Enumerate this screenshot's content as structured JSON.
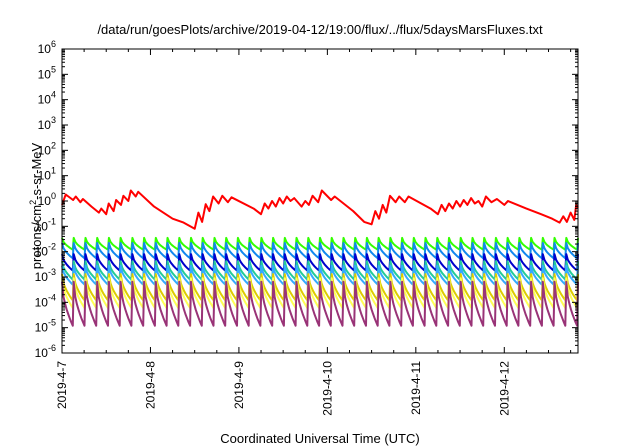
{
  "chart_data": {
    "type": "line",
    "title": "/data/run/goesPlots/archive/2019-04-12/19:00/flux/../flux/5daysMarsFluxes.txt",
    "xlabel": "Coordinated Universal Time (UTC)",
    "ylabel_main": "protons/cm",
    "ylabel_sup": "2",
    "ylabel_tail": "-s-sr-MeV",
    "yscale": "log",
    "ylim": [
      1e-06,
      1000000.0
    ],
    "y_ticks": [
      {
        "value": 1e-06,
        "base": "10",
        "exp": "-6"
      },
      {
        "value": 1e-05,
        "base": "10",
        "exp": "-5"
      },
      {
        "value": 0.0001,
        "base": "10",
        "exp": "-4"
      },
      {
        "value": 0.001,
        "base": "10",
        "exp": "-3"
      },
      {
        "value": 0.01,
        "base": "10",
        "exp": "-2"
      },
      {
        "value": 0.1,
        "base": "10",
        "exp": "-1"
      },
      {
        "value": 1,
        "base": "10",
        "exp": "0"
      },
      {
        "value": 10,
        "base": "10",
        "exp": "1"
      },
      {
        "value": 100,
        "base": "10",
        "exp": "2"
      },
      {
        "value": 1000,
        "base": "10",
        "exp": "3"
      },
      {
        "value": 10000,
        "base": "10",
        "exp": "4"
      },
      {
        "value": 100000,
        "base": "10",
        "exp": "5"
      },
      {
        "value": 1000000,
        "base": "10",
        "exp": "6"
      }
    ],
    "xlim": [
      "2019-04-07T00:00",
      "2019-04-12T20:00"
    ],
    "x_ticks": [
      "2019-4-7",
      "2019-4-8",
      "2019-4-9",
      "2019-4-10",
      "2019-4-11",
      "2019-4-12"
    ],
    "x_tick_dates": [
      "2019-04-07T00:00",
      "2019-04-08T00:00",
      "2019-04-09T00:00",
      "2019-04-10T00:00",
      "2019-04-11T00:00",
      "2019-04-12T00:00"
    ],
    "grid": false,
    "legend": "none",
    "series": [
      {
        "color": "#ff0000",
        "points": [
          [
            "2019-04-07T00:00",
            0.7
          ],
          [
            "2019-04-07T01:00",
            1.8
          ],
          [
            "2019-04-07T03:00",
            1.1
          ],
          [
            "2019-04-07T03:45",
            1.5
          ],
          [
            "2019-04-07T05:00",
            0.9
          ],
          [
            "2019-04-07T05:40",
            1.2
          ],
          [
            "2019-04-07T08:00",
            0.6
          ],
          [
            "2019-04-07T10:00",
            0.35
          ],
          [
            "2019-04-07T10:40",
            0.5
          ],
          [
            "2019-04-07T12:00",
            0.3
          ],
          [
            "2019-04-07T12:40",
            0.8
          ],
          [
            "2019-04-07T14:00",
            0.4
          ],
          [
            "2019-04-07T14:40",
            1.1
          ],
          [
            "2019-04-07T16:00",
            0.7
          ],
          [
            "2019-04-07T16:40",
            1.6
          ],
          [
            "2019-04-07T18:00",
            1.0
          ],
          [
            "2019-04-07T18:40",
            2.6
          ],
          [
            "2019-04-07T20:00",
            1.5
          ],
          [
            "2019-04-07T20:40",
            2.3
          ],
          [
            "2019-04-08T01:00",
            0.6
          ],
          [
            "2019-04-08T06:00",
            0.2
          ],
          [
            "2019-04-08T09:00",
            0.14
          ],
          [
            "2019-04-08T12:00",
            0.08
          ],
          [
            "2019-04-08T13:00",
            0.35
          ],
          [
            "2019-04-08T14:00",
            0.15
          ],
          [
            "2019-04-08T15:00",
            0.75
          ],
          [
            "2019-04-08T16:00",
            0.4
          ],
          [
            "2019-04-08T17:00",
            1.5
          ],
          [
            "2019-04-08T18:30",
            0.8
          ],
          [
            "2019-04-08T19:30",
            1.6
          ],
          [
            "2019-04-08T21:00",
            0.9
          ],
          [
            "2019-04-08T22:00",
            1.4
          ],
          [
            "2019-04-09T04:00",
            0.5
          ],
          [
            "2019-04-09T06:00",
            0.3
          ],
          [
            "2019-04-09T07:00",
            0.8
          ],
          [
            "2019-04-09T08:00",
            0.5
          ],
          [
            "2019-04-09T09:00",
            1.0
          ],
          [
            "2019-04-09T10:00",
            0.6
          ],
          [
            "2019-04-09T11:00",
            1.3
          ],
          [
            "2019-04-09T12:00",
            0.8
          ],
          [
            "2019-04-09T13:00",
            1.5
          ],
          [
            "2019-04-09T14:00",
            1.0
          ],
          [
            "2019-04-09T15:00",
            1.3
          ],
          [
            "2019-04-09T17:00",
            0.6
          ],
          [
            "2019-04-09T18:00",
            1.0
          ],
          [
            "2019-04-09T19:00",
            0.7
          ],
          [
            "2019-04-09T20:00",
            1.6
          ],
          [
            "2019-04-09T21:30",
            0.9
          ],
          [
            "2019-04-09T22:30",
            2.6
          ],
          [
            "2019-04-10T01:00",
            1.1
          ],
          [
            "2019-04-10T02:00",
            1.5
          ],
          [
            "2019-04-10T07:00",
            0.4
          ],
          [
            "2019-04-10T10:00",
            0.15
          ],
          [
            "2019-04-10T12:00",
            0.12
          ],
          [
            "2019-04-10T13:00",
            0.4
          ],
          [
            "2019-04-10T14:00",
            0.2
          ],
          [
            "2019-04-10T15:00",
            0.7
          ],
          [
            "2019-04-10T16:00",
            0.35
          ],
          [
            "2019-04-10T17:00",
            1.6
          ],
          [
            "2019-04-10T18:30",
            0.9
          ],
          [
            "2019-04-10T19:30",
            1.5
          ],
          [
            "2019-04-10T21:00",
            0.9
          ],
          [
            "2019-04-10T22:00",
            1.5
          ],
          [
            "2019-04-11T04:00",
            0.5
          ],
          [
            "2019-04-11T06:00",
            0.3
          ],
          [
            "2019-04-11T07:00",
            0.7
          ],
          [
            "2019-04-11T08:00",
            0.4
          ],
          [
            "2019-04-11T09:00",
            0.8
          ],
          [
            "2019-04-11T10:00",
            0.5
          ],
          [
            "2019-04-11T11:00",
            1.0
          ],
          [
            "2019-04-11T12:00",
            0.6
          ],
          [
            "2019-04-11T13:00",
            1.1
          ],
          [
            "2019-04-11T14:00",
            0.7
          ],
          [
            "2019-04-11T15:00",
            1.3
          ],
          [
            "2019-04-11T16:00",
            0.8
          ],
          [
            "2019-04-11T17:00",
            1.0
          ],
          [
            "2019-04-11T18:00",
            0.6
          ],
          [
            "2019-04-11T19:00",
            1.5
          ],
          [
            "2019-04-11T20:30",
            0.9
          ],
          [
            "2019-04-11T22:00",
            1.2
          ],
          [
            "2019-04-12T00:00",
            0.7
          ],
          [
            "2019-04-12T01:00",
            1.0
          ],
          [
            "2019-04-12T06:00",
            0.5
          ],
          [
            "2019-04-12T10:00",
            0.3
          ],
          [
            "2019-04-12T13:00",
            0.2
          ],
          [
            "2019-04-12T15:00",
            0.14
          ],
          [
            "2019-04-12T16:00",
            0.25
          ],
          [
            "2019-04-12T17:00",
            0.15
          ],
          [
            "2019-04-12T18:00",
            0.35
          ],
          [
            "2019-04-12T19:00",
            0.18
          ],
          [
            "2019-04-12T19:30",
            0.7
          ],
          [
            "2019-04-12T20:00",
            0.55
          ]
        ]
      },
      {
        "color": "#33ff00",
        "sawtooth": {
          "cycles": 44,
          "peak": 0.035,
          "trough": 0.012
        }
      },
      {
        "color": "#1188ee",
        "sawtooth": {
          "cycles": 44,
          "peak": 0.022,
          "trough": 0.0055
        }
      },
      {
        "color": "#0000cc",
        "sawtooth": {
          "cycles": 44,
          "peak": 0.008,
          "trough": 0.0018
        }
      },
      {
        "color": "#22cc99",
        "sawtooth": {
          "cycles": 44,
          "peak": 0.0042,
          "trough": 0.0008
        }
      },
      {
        "color": "#33aaff",
        "sawtooth": {
          "cycles": 44,
          "peak": 0.0028,
          "trough": 0.0005
        }
      },
      {
        "color": "#ddcc00",
        "sawtooth": {
          "cycles": 44,
          "peak": 0.0013,
          "trough": 0.00012
        }
      },
      {
        "color": "#ffff55",
        "sawtooth": {
          "cycles": 44,
          "peak": 0.0009,
          "trough": 6e-05
        }
      },
      {
        "color": "#993377",
        "sawtooth": {
          "cycles": 44,
          "peak": 0.00065,
          "trough": 1.2e-05
        }
      }
    ]
  }
}
